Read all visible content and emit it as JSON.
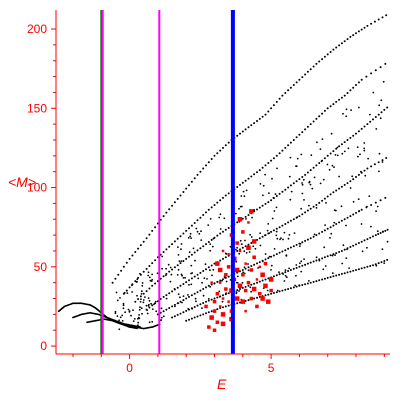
{
  "chart_data": {
    "type": "scatter",
    "title": "",
    "xlabel": "E",
    "ylabel": "<M>",
    "xlim": [
      -2.6,
      9.2
    ],
    "ylim": [
      -5,
      212
    ],
    "xticks": [
      0,
      5
    ],
    "xtick_labels": [
      "0",
      "5"
    ],
    "yticks": [
      0,
      50,
      100,
      150,
      200
    ],
    "ytick_labels": [
      "0",
      "50",
      "100",
      "150",
      "200"
    ],
    "grid": false,
    "legend": "none",
    "colors": {
      "axes": "#ff0000",
      "black_points": "#000000",
      "red_points": "#ff0000",
      "green_line": "#008000",
      "magenta_line": "#ff00ff",
      "blue_line": "#0000ff"
    },
    "vertical_lines": [
      {
        "x": -1.0,
        "color": "#008000"
      },
      {
        "x": -0.95,
        "color": "#ff00ff"
      },
      {
        "x": 1.05,
        "color": "#ff00ff"
      },
      {
        "x": 3.65,
        "color": "#0000ff"
      }
    ],
    "black_curves": [
      {
        "x": [
          -2.5,
          -2.3,
          -2.0,
          -1.7,
          -1.4,
          -1.2,
          -1.0,
          -0.8,
          -0.6,
          -0.3,
          0.0,
          0.2,
          0.5,
          0.8,
          1.1
        ],
        "y": [
          22,
          25,
          27,
          27,
          26,
          24,
          21,
          18,
          16,
          14,
          13,
          12,
          11,
          12,
          14
        ]
      },
      {
        "x": [
          -2.0,
          -1.7,
          -1.4,
          -1.1,
          -0.8,
          -0.5,
          -0.2,
          0.1,
          0.4
        ],
        "y": [
          18,
          20,
          21,
          20,
          18,
          16,
          14,
          13,
          12
        ]
      },
      {
        "x": [
          -1.5,
          -1.2,
          -0.9,
          -0.6,
          -0.3,
          0.0,
          0.3
        ],
        "y": [
          15,
          16,
          17,
          16,
          14,
          12,
          11
        ]
      }
    ],
    "black_bands": [
      {
        "x": [
          -0.6,
          0.0,
          0.6,
          1.2,
          1.8,
          2.4,
          3.0,
          3.6,
          4.2,
          4.8,
          5.4,
          6.0,
          6.6,
          7.2,
          7.8,
          8.4,
          9.2
        ],
        "y": [
          40,
          55,
          68,
          82,
          95,
          108,
          120,
          130,
          138,
          146,
          158,
          168,
          178,
          187,
          195,
          202,
          210
        ]
      },
      {
        "x": [
          -0.2,
          0.4,
          1.0,
          1.6,
          2.2,
          2.8,
          3.4,
          4.0,
          4.6,
          5.2,
          5.8,
          6.4,
          7.0,
          7.6,
          8.2,
          9.2
        ],
        "y": [
          33,
          45,
          56,
          66,
          76,
          86,
          95,
          103,
          111,
          120,
          130,
          140,
          150,
          158,
          168,
          180
        ]
      },
      {
        "x": [
          0.2,
          0.8,
          1.4,
          2.0,
          2.6,
          3.2,
          3.8,
          4.4,
          5.0,
          5.6,
          6.2,
          6.8,
          7.4,
          8.0,
          8.6,
          9.2
        ],
        "y": [
          28,
          38,
          47,
          55,
          63,
          71,
          78,
          85,
          92,
          100,
          108,
          117,
          126,
          134,
          143,
          152
        ]
      },
      {
        "x": [
          0.6,
          1.2,
          1.8,
          2.4,
          3.0,
          3.6,
          4.2,
          4.8,
          5.4,
          6.0,
          6.6,
          7.2,
          7.8,
          8.4,
          9.2
        ],
        "y": [
          23,
          31,
          38,
          45,
          52,
          58,
          64,
          70,
          76,
          82,
          89,
          97,
          104,
          112,
          120
        ]
      },
      {
        "x": [
          1.0,
          1.6,
          2.2,
          2.8,
          3.4,
          4.0,
          4.6,
          5.2,
          5.8,
          6.4,
          7.0,
          7.6,
          8.2,
          9.2
        ],
        "y": [
          20,
          26,
          32,
          38,
          43,
          48,
          53,
          58,
          63,
          68,
          74,
          80,
          86,
          95
        ]
      },
      {
        "x": [
          1.5,
          2.1,
          2.7,
          3.3,
          3.9,
          4.5,
          5.1,
          5.7,
          6.3,
          6.9,
          7.5,
          8.1,
          8.7,
          9.2
        ],
        "y": [
          18,
          23,
          28,
          32,
          36,
          40,
          44,
          48,
          52,
          56,
          60,
          65,
          70,
          74
        ]
      },
      {
        "x": [
          2.0,
          2.6,
          3.2,
          3.8,
          4.4,
          5.0,
          5.6,
          6.2,
          6.8,
          7.4,
          8.0,
          8.6,
          9.2
        ],
        "y": [
          16,
          20,
          24,
          27,
          30,
          33,
          36,
          39,
          42,
          45,
          48,
          51,
          55
        ]
      }
    ],
    "red_points": [
      [
        2.8,
        12
      ],
      [
        2.9,
        18
      ],
      [
        3.0,
        22
      ],
      [
        3.0,
        28
      ],
      [
        3.1,
        15
      ],
      [
        3.1,
        33
      ],
      [
        3.2,
        25
      ],
      [
        3.2,
        40
      ],
      [
        3.3,
        20
      ],
      [
        3.3,
        30
      ],
      [
        3.4,
        36
      ],
      [
        3.4,
        45
      ],
      [
        3.5,
        28
      ],
      [
        3.5,
        50
      ],
      [
        3.6,
        35
      ],
      [
        3.6,
        22
      ],
      [
        3.7,
        42
      ],
      [
        3.7,
        55
      ],
      [
        3.8,
        30
      ],
      [
        3.8,
        48
      ],
      [
        3.9,
        38
      ],
      [
        3.9,
        60
      ],
      [
        4.0,
        45
      ],
      [
        4.0,
        28
      ],
      [
        4.1,
        52
      ],
      [
        4.1,
        35
      ],
      [
        4.2,
        40
      ],
      [
        4.2,
        62
      ],
      [
        4.3,
        30
      ],
      [
        4.3,
        48
      ],
      [
        4.4,
        36
      ],
      [
        4.4,
        56
      ],
      [
        4.5,
        42
      ],
      [
        4.5,
        25
      ],
      [
        4.6,
        50
      ],
      [
        4.6,
        33
      ],
      [
        4.7,
        45
      ],
      [
        4.8,
        38
      ],
      [
        4.9,
        28
      ],
      [
        5.0,
        35
      ],
      [
        3.2,
        48
      ],
      [
        3.5,
        58
      ],
      [
        3.8,
        65
      ],
      [
        4.0,
        72
      ],
      [
        4.2,
        78
      ],
      [
        3.6,
        70
      ],
      [
        3.3,
        60
      ],
      [
        4.4,
        66
      ],
      [
        3.1,
        52
      ],
      [
        2.9,
        40
      ],
      [
        3.0,
        10
      ],
      [
        3.3,
        14
      ],
      [
        3.6,
        17
      ],
      [
        2.7,
        25
      ],
      [
        4.1,
        22
      ],
      [
        4.7,
        30
      ],
      [
        5.0,
        42
      ],
      [
        4.8,
        52
      ],
      [
        3.9,
        80
      ],
      [
        4.3,
        85
      ]
    ]
  }
}
